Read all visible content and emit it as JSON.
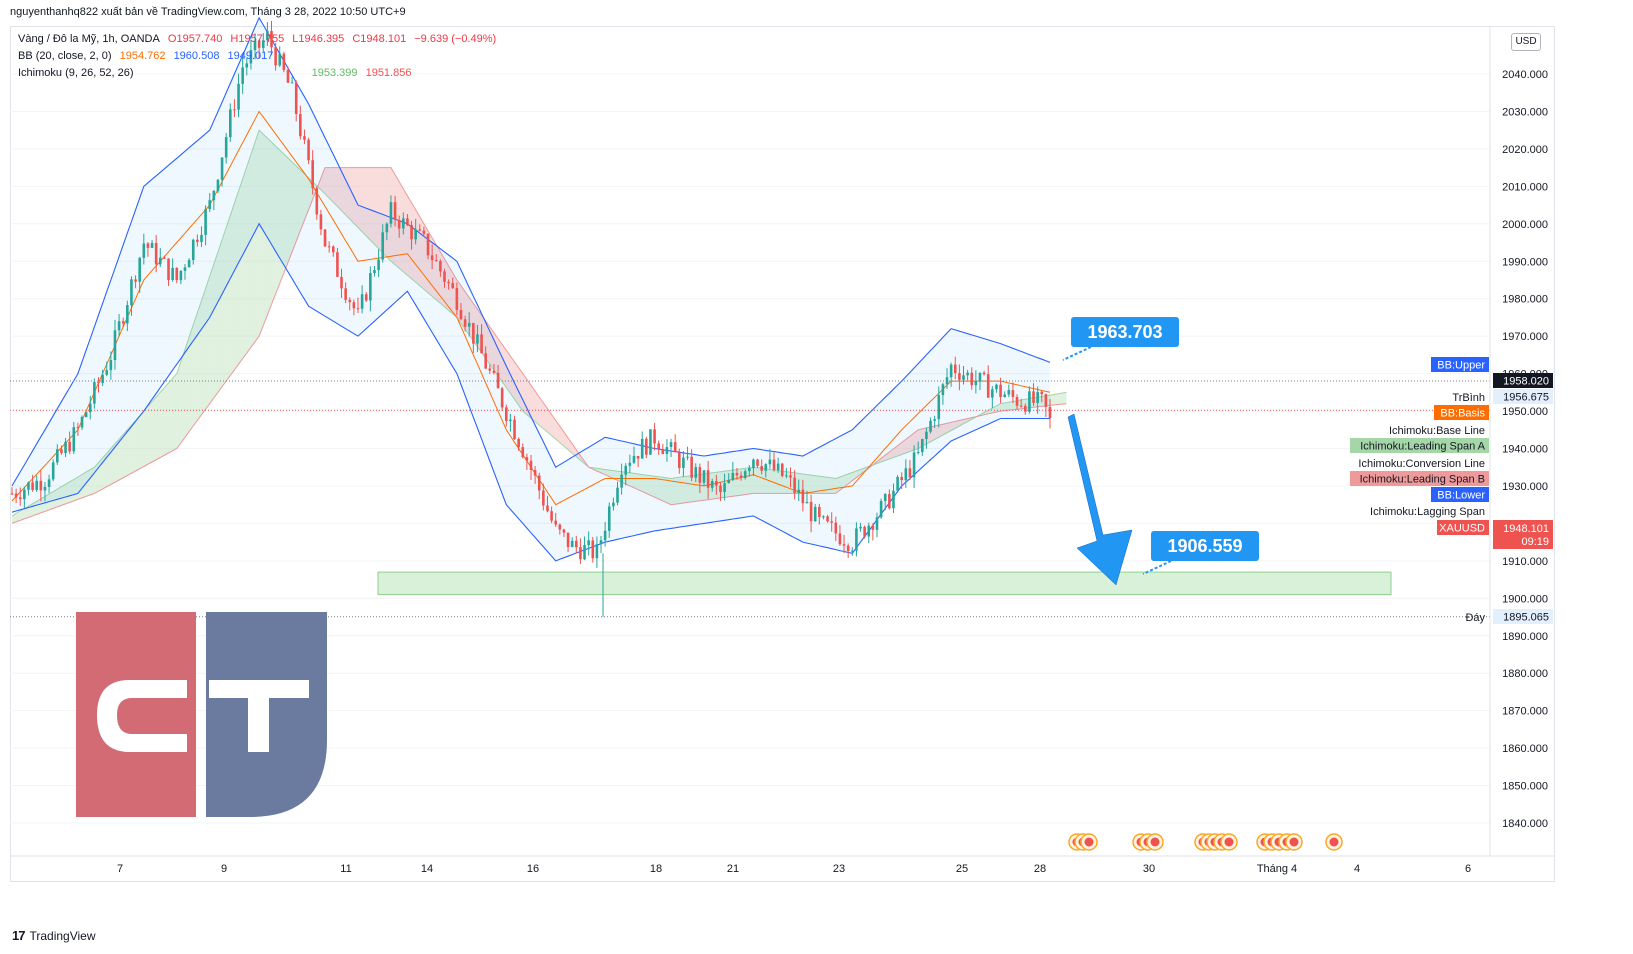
{
  "header": {
    "text": "nguyenthanhq822 xuất bản về TradingView.com, Tháng 3 28, 2022 10:50 UTC+9"
  },
  "legend": {
    "symbol": "Vàng / Đô la Mỹ, 1h, OANDA",
    "o": "O1957.740",
    "h": "H1957.755",
    "l": "L1946.395",
    "c": "C1948.101",
    "chg": "−9.639 (−0.49%)",
    "bb_label": "BB (20, close, 2, 0)",
    "bb_basis": "1954.762",
    "bb_upper": "1960.508",
    "bb_lower": "1949.017",
    "ichi_label": "Ichimoku (9, 26, 52, 26)",
    "ichi_v1": "1953.399",
    "ichi_v2": "1951.856"
  },
  "currency_button": "USD",
  "footer": {
    "logo_text": "TradingView",
    "logo_mark": "17"
  },
  "callouts": [
    {
      "label": "1963.703"
    },
    {
      "label": "1906.559"
    }
  ],
  "right_labels": {
    "bb_upper": "BB:Upper",
    "trbinh": "TrBình",
    "bb_basis": "BB:Basis",
    "base_line": "Ichimoku:Base Line",
    "span_a": "Ichimoku:Leading Span A",
    "conversion": "Ichimoku:Conversion Line",
    "span_b": "Ichimoku:Leading Span B",
    "bb_lower": "BB:Lower",
    "lagging": "Ichimoku:Lagging Span",
    "xauusd": "XAUUSD",
    "day": "Đáy"
  },
  "price_tags": {
    "p1958": "1958.020",
    "p1956": "1956.675",
    "p1948": "1948.101",
    "countdown": "09:19",
    "p1895": "1895.065"
  },
  "colors": {
    "up": "#26a69a",
    "down": "#ef5350",
    "bb": "#2962ff",
    "basis": "#ff6d00",
    "cloud_green": "#a5d6a7",
    "cloud_red": "#ef9a9a",
    "zone": "#b9e4b9",
    "callout": "#2196f3",
    "logo_red": "#d36b75",
    "logo_blue": "#6b7a9f"
  },
  "chart_data": {
    "type": "candlestick",
    "symbol": "XAUUSD",
    "timeframe": "1h",
    "y_axis": {
      "min": 1835,
      "max": 2050,
      "ticks": [
        "2040.000",
        "2030.000",
        "2020.000",
        "2010.000",
        "2000.000",
        "1990.000",
        "1980.000",
        "1970.000",
        "1960.000",
        "1950.000",
        "1940.000",
        "1930.000",
        "1920.000",
        "1910.000",
        "1900.000",
        "1890.000",
        "1880.000",
        "1870.000",
        "1860.000",
        "1850.000",
        "1840.000"
      ]
    },
    "x_axis": {
      "ticks": [
        "7",
        "9",
        "11",
        "14",
        "16",
        "18",
        "21",
        "23",
        "25",
        "28",
        "30",
        "Tháng 4",
        "4",
        "6"
      ]
    },
    "price_path": [
      [
        0,
        1928
      ],
      [
        4,
        1932
      ],
      [
        8,
        1945
      ],
      [
        12,
        1965
      ],
      [
        16,
        1995
      ],
      [
        20,
        1985
      ],
      [
        24,
        2005
      ],
      [
        28,
        2042
      ],
      [
        31,
        2050
      ],
      [
        34,
        2035
      ],
      [
        38,
        1995
      ],
      [
        42,
        1975
      ],
      [
        46,
        2003
      ],
      [
        50,
        1995
      ],
      [
        54,
        1980
      ],
      [
        58,
        1960
      ],
      [
        62,
        1940
      ],
      [
        66,
        1918
      ],
      [
        68,
        1914
      ],
      [
        71,
        1912
      ],
      [
        74,
        1936
      ],
      [
        78,
        1943
      ],
      [
        82,
        1935
      ],
      [
        86,
        1928
      ],
      [
        90,
        1938
      ],
      [
        94,
        1932
      ],
      [
        98,
        1920
      ],
      [
        102,
        1915
      ],
      [
        106,
        1925
      ],
      [
        110,
        1938
      ],
      [
        114,
        1962
      ],
      [
        118,
        1957
      ],
      [
        122,
        1953
      ],
      [
        125,
        1952
      ],
      [
        126,
        1948.1
      ]
    ],
    "bb_upper": [
      [
        0,
        1930
      ],
      [
        8,
        1960
      ],
      [
        16,
        2010
      ],
      [
        24,
        2025
      ],
      [
        30,
        2055
      ],
      [
        36,
        2032
      ],
      [
        42,
        2005
      ],
      [
        48,
        2000
      ],
      [
        54,
        1990
      ],
      [
        60,
        1962
      ],
      [
        66,
        1935
      ],
      [
        72,
        1943
      ],
      [
        78,
        1940
      ],
      [
        84,
        1938
      ],
      [
        90,
        1940
      ],
      [
        96,
        1938
      ],
      [
        102,
        1945
      ],
      [
        108,
        1958
      ],
      [
        114,
        1972
      ],
      [
        120,
        1968
      ],
      [
        126,
        1963
      ]
    ],
    "bb_basis": [
      [
        0,
        1926
      ],
      [
        8,
        1945
      ],
      [
        16,
        1985
      ],
      [
        24,
        2005
      ],
      [
        30,
        2030
      ],
      [
        36,
        2012
      ],
      [
        42,
        1990
      ],
      [
        48,
        1992
      ],
      [
        54,
        1975
      ],
      [
        60,
        1945
      ],
      [
        66,
        1925
      ],
      [
        72,
        1932
      ],
      [
        78,
        1932
      ],
      [
        84,
        1930
      ],
      [
        90,
        1933
      ],
      [
        96,
        1928
      ],
      [
        102,
        1930
      ],
      [
        108,
        1945
      ],
      [
        114,
        1958
      ],
      [
        120,
        1958
      ],
      [
        126,
        1955
      ]
    ],
    "bb_lower": [
      [
        0,
        1923
      ],
      [
        8,
        1928
      ],
      [
        16,
        1950
      ],
      [
        24,
        1975
      ],
      [
        30,
        2000
      ],
      [
        36,
        1978
      ],
      [
        42,
        1970
      ],
      [
        48,
        1982
      ],
      [
        54,
        1960
      ],
      [
        60,
        1925
      ],
      [
        66,
        1910
      ],
      [
        72,
        1915
      ],
      [
        78,
        1918
      ],
      [
        84,
        1920
      ],
      [
        90,
        1922
      ],
      [
        96,
        1915
      ],
      [
        102,
        1912
      ],
      [
        108,
        1930
      ],
      [
        114,
        1942
      ],
      [
        120,
        1948
      ],
      [
        126,
        1948
      ]
    ],
    "cloud_a": [
      [
        0,
        1922
      ],
      [
        10,
        1935
      ],
      [
        20,
        1960
      ],
      [
        30,
        2025
      ],
      [
        38,
        2008
      ],
      [
        46,
        1990
      ],
      [
        54,
        1975
      ],
      [
        62,
        1950
      ],
      [
        70,
        1935
      ],
      [
        80,
        1932
      ],
      [
        90,
        1935
      ],
      [
        100,
        1932
      ],
      [
        110,
        1940
      ],
      [
        120,
        1952
      ],
      [
        128,
        1955
      ]
    ],
    "cloud_b": [
      [
        0,
        1920
      ],
      [
        10,
        1928
      ],
      [
        20,
        1940
      ],
      [
        30,
        1970
      ],
      [
        38,
        2015
      ],
      [
        46,
        2015
      ],
      [
        54,
        1985
      ],
      [
        62,
        1960
      ],
      [
        70,
        1935
      ],
      [
        80,
        1925
      ],
      [
        90,
        1928
      ],
      [
        100,
        1928
      ],
      [
        110,
        1945
      ],
      [
        120,
        1950
      ],
      [
        128,
        1952
      ]
    ],
    "support_zone": [
      1901,
      1907
    ],
    "horizontal_levels": {
      "current": 1958.02,
      "average": 1950.2,
      "bottom": 1895.065
    },
    "projection_target": 1906.559
  }
}
